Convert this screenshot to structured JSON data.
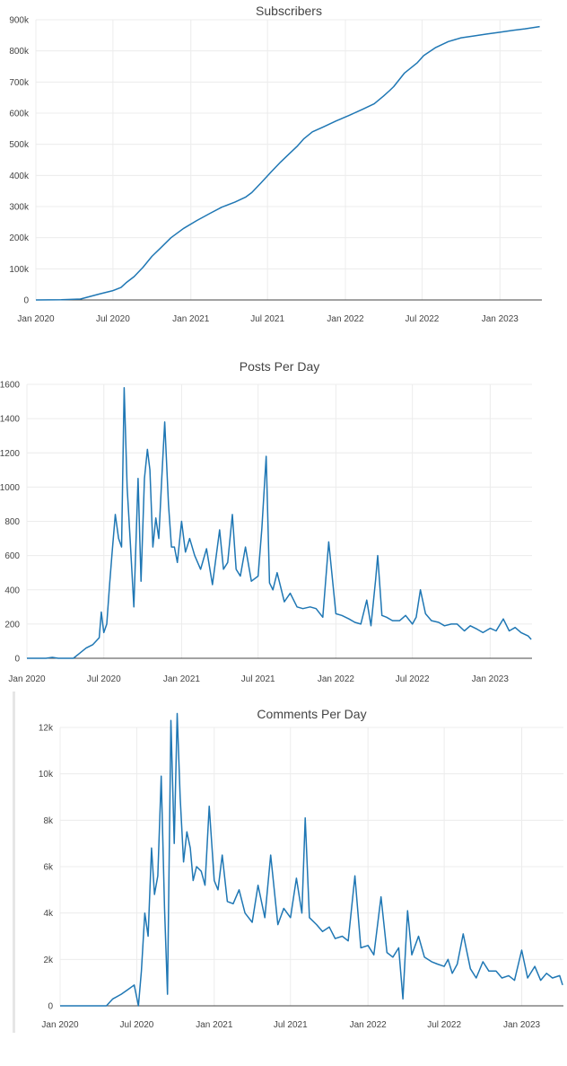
{
  "chart_data": [
    {
      "id": "subscribers",
      "type": "line",
      "title": "Subscribers",
      "xlabel": "",
      "ylabel": "",
      "x_ticks": [
        "Jan 2020",
        "Jul 2020",
        "Jan 2021",
        "Jul 2021",
        "Jan 2022",
        "Jul 2022",
        "Jan 2023"
      ],
      "y_ticks": [
        "0",
        "100k",
        "200k",
        "300k",
        "400k",
        "500k",
        "600k",
        "700k",
        "800k",
        "900k"
      ],
      "ylim": [
        0,
        900000
      ],
      "xlim": [
        "2020-01-01",
        "2023-04-10"
      ],
      "grid": true,
      "series": [
        {
          "x": [
            "2020-01-01",
            "2020-03-01",
            "2020-04-15",
            "2020-06-01",
            "2020-07-01",
            "2020-07-20",
            "2020-08-01",
            "2020-08-20",
            "2020-09-10",
            "2020-10-01",
            "2020-10-20",
            "2020-11-15",
            "2020-12-15",
            "2021-01-15",
            "2021-02-15",
            "2021-03-15",
            "2021-04-15",
            "2021-05-10",
            "2021-05-25",
            "2021-06-15",
            "2021-07-10",
            "2021-08-01",
            "2021-08-20",
            "2021-09-10",
            "2021-09-25",
            "2021-10-15",
            "2021-11-10",
            "2021-12-10",
            "2022-01-10",
            "2022-02-10",
            "2022-03-10",
            "2022-04-01",
            "2022-04-15",
            "2022-04-25",
            "2022-05-20",
            "2022-06-20",
            "2022-07-05",
            "2022-08-01",
            "2022-09-01",
            "2022-10-01",
            "2022-11-01",
            "2022-12-01",
            "2023-01-01",
            "2023-02-01",
            "2023-03-01",
            "2023-04-05"
          ],
          "values": [
            0,
            1000,
            3000,
            20000,
            30000,
            40000,
            55000,
            75000,
            105000,
            140000,
            165000,
            200000,
            230000,
            255000,
            278000,
            298000,
            314000,
            330000,
            345000,
            375000,
            412000,
            443000,
            468000,
            495000,
            518000,
            540000,
            556000,
            575000,
            593000,
            612000,
            630000,
            655000,
            672000,
            685000,
            728000,
            762000,
            785000,
            810000,
            830000,
            842000,
            848000,
            854000,
            860000,
            866000,
            871000,
            878000
          ]
        }
      ]
    },
    {
      "id": "posts",
      "type": "line",
      "title": "Posts Per Day",
      "xlabel": "",
      "ylabel": "",
      "x_ticks": [
        "Jan 2020",
        "Jul 2020",
        "Jan 2021",
        "Jul 2021",
        "Jan 2022",
        "Jul 2022",
        "Jan 2023"
      ],
      "y_ticks": [
        "0",
        "200",
        "400",
        "600",
        "800",
        "1000",
        "1200",
        "1400",
        "1600"
      ],
      "ylim": [
        0,
        1600
      ],
      "xlim": [
        "2020-01-01",
        "2023-04-10"
      ],
      "grid": true,
      "series": [
        {
          "x": [
            "2020-01-01",
            "2020-02-15",
            "2020-03-01",
            "2020-03-15",
            "2020-04-01",
            "2020-04-20",
            "2020-05-05",
            "2020-05-20",
            "2020-06-05",
            "2020-06-20",
            "2020-06-25",
            "2020-07-01",
            "2020-07-08",
            "2020-07-15",
            "2020-07-20",
            "2020-07-28",
            "2020-08-05",
            "2020-08-12",
            "2020-08-18",
            "2020-08-25",
            "2020-09-01",
            "2020-09-10",
            "2020-09-20",
            "2020-09-27",
            "2020-10-05",
            "2020-10-12",
            "2020-10-18",
            "2020-10-25",
            "2020-11-01",
            "2020-11-08",
            "2020-11-15",
            "2020-11-22",
            "2020-12-01",
            "2020-12-08",
            "2020-12-15",
            "2020-12-22",
            "2021-01-01",
            "2021-01-10",
            "2021-01-20",
            "2021-02-01",
            "2021-02-15",
            "2021-03-01",
            "2021-03-15",
            "2021-04-01",
            "2021-04-10",
            "2021-04-20",
            "2021-05-01",
            "2021-05-10",
            "2021-05-20",
            "2021-06-01",
            "2021-06-15",
            "2021-07-01",
            "2021-07-10",
            "2021-07-20",
            "2021-07-28",
            "2021-08-05",
            "2021-08-15",
            "2021-09-01",
            "2021-09-15",
            "2021-10-01",
            "2021-10-15",
            "2021-11-01",
            "2021-11-15",
            "2021-12-01",
            "2021-12-15",
            "2022-01-01",
            "2022-01-15",
            "2022-02-01",
            "2022-02-15",
            "2022-03-01",
            "2022-03-15",
            "2022-03-25",
            "2022-04-05",
            "2022-04-10",
            "2022-04-20",
            "2022-05-01",
            "2022-05-15",
            "2022-06-01",
            "2022-06-15",
            "2022-07-01",
            "2022-07-10",
            "2022-07-20",
            "2022-08-01",
            "2022-08-15",
            "2022-09-01",
            "2022-09-15",
            "2022-10-01",
            "2022-10-15",
            "2022-11-01",
            "2022-11-15",
            "2022-12-01",
            "2022-12-15",
            "2023-01-01",
            "2023-01-15",
            "2023-02-01",
            "2023-02-15",
            "2023-03-01",
            "2023-03-15",
            "2023-04-01",
            "2023-04-08"
          ],
          "values": [
            0,
            0,
            5,
            0,
            0,
            0,
            30,
            60,
            80,
            120,
            270,
            150,
            200,
            440,
            600,
            840,
            700,
            650,
            1580,
            1000,
            700,
            300,
            1050,
            450,
            1050,
            1220,
            1100,
            650,
            820,
            700,
            1050,
            1380,
            900,
            650,
            650,
            560,
            800,
            620,
            700,
            600,
            520,
            640,
            430,
            750,
            520,
            560,
            840,
            520,
            480,
            650,
            450,
            480,
            760,
            1180,
            440,
            400,
            500,
            330,
            380,
            300,
            290,
            300,
            290,
            240,
            680,
            260,
            250,
            230,
            210,
            200,
            340,
            190,
            460,
            600,
            250,
            240,
            220,
            220,
            250,
            200,
            240,
            400,
            260,
            220,
            210,
            190,
            200,
            200,
            160,
            190,
            170,
            150,
            175,
            160,
            230,
            160,
            180,
            150,
            130,
            110
          ]
        }
      ]
    },
    {
      "id": "comments",
      "type": "line",
      "title": "Comments Per Day",
      "xlabel": "",
      "ylabel": "",
      "x_ticks": [
        "Jan 2020",
        "Jul 2020",
        "Jan 2021",
        "Jul 2021",
        "Jan 2022",
        "Jul 2022",
        "Jan 2023"
      ],
      "y_ticks": [
        "0",
        "2k",
        "4k",
        "6k",
        "8k",
        "10k",
        "12k"
      ],
      "ylim": [
        0,
        12000
      ],
      "xlim": [
        "2020-01-01",
        "2023-04-10"
      ],
      "grid": true,
      "series": [
        {
          "x": [
            "2020-01-01",
            "2020-02-15",
            "2020-03-01",
            "2020-04-01",
            "2020-04-20",
            "2020-05-05",
            "2020-05-25",
            "2020-06-10",
            "2020-06-25",
            "2020-07-05",
            "2020-07-12",
            "2020-07-20",
            "2020-07-28",
            "2020-08-05",
            "2020-08-12",
            "2020-08-20",
            "2020-08-28",
            "2020-09-05",
            "2020-09-12",
            "2020-09-20",
            "2020-09-28",
            "2020-10-05",
            "2020-10-12",
            "2020-10-20",
            "2020-10-28",
            "2020-11-05",
            "2020-11-12",
            "2020-11-20",
            "2020-12-01",
            "2020-12-10",
            "2020-12-20",
            "2021-01-01",
            "2021-01-10",
            "2021-01-20",
            "2021-02-01",
            "2021-02-15",
            "2021-03-01",
            "2021-03-15",
            "2021-04-01",
            "2021-04-15",
            "2021-05-01",
            "2021-05-15",
            "2021-06-01",
            "2021-06-15",
            "2021-07-01",
            "2021-07-15",
            "2021-07-28",
            "2021-08-05",
            "2021-08-15",
            "2021-09-01",
            "2021-09-15",
            "2021-10-01",
            "2021-10-15",
            "2021-11-01",
            "2021-11-15",
            "2021-12-01",
            "2021-12-15",
            "2022-01-01",
            "2022-01-15",
            "2022-02-01",
            "2022-02-15",
            "2022-03-01",
            "2022-03-15",
            "2022-03-25",
            "2022-04-05",
            "2022-04-15",
            "2022-05-01",
            "2022-05-15",
            "2022-06-01",
            "2022-06-15",
            "2022-07-01",
            "2022-07-10",
            "2022-07-20",
            "2022-08-01",
            "2022-08-15",
            "2022-09-01",
            "2022-09-15",
            "2022-10-01",
            "2022-10-15",
            "2022-11-01",
            "2022-11-15",
            "2022-12-01",
            "2022-12-15",
            "2023-01-01",
            "2023-01-15",
            "2023-02-01",
            "2023-02-15",
            "2023-03-01",
            "2023-03-15",
            "2023-04-01",
            "2023-04-08"
          ],
          "values": [
            0,
            0,
            0,
            0,
            0,
            300,
            500,
            700,
            900,
            0,
            1500,
            4000,
            3000,
            6800,
            4800,
            5600,
            9900,
            4200,
            500,
            12300,
            7000,
            12600,
            9000,
            6200,
            7500,
            6800,
            5400,
            6000,
            5800,
            5200,
            8600,
            5400,
            5000,
            6500,
            4500,
            4400,
            5000,
            4000,
            3600,
            5200,
            3800,
            6500,
            3500,
            4200,
            3800,
            5500,
            4000,
            8100,
            3800,
            3500,
            3200,
            3400,
            2900,
            3000,
            2800,
            5600,
            2500,
            2600,
            2200,
            4700,
            2300,
            2100,
            2500,
            300,
            4100,
            2200,
            3000,
            2100,
            1900,
            1800,
            1700,
            2000,
            1400,
            1800,
            3100,
            1600,
            1200,
            1900,
            1500,
            1500,
            1200,
            1300,
            1100,
            2400,
            1200,
            1700,
            1100,
            1400,
            1200,
            1300,
            900
          ]
        }
      ]
    }
  ]
}
